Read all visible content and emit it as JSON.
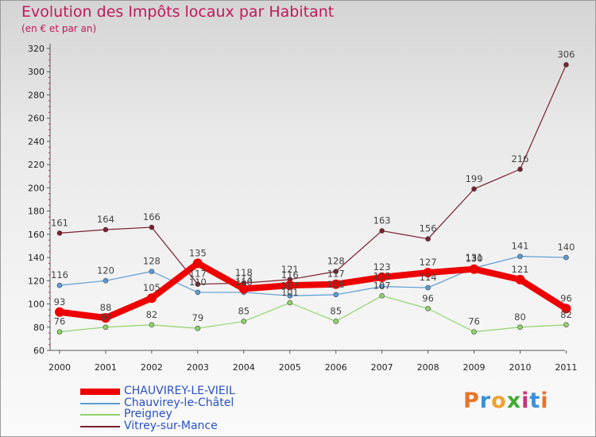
{
  "title": "Evolution des Impôts locaux par Habitant",
  "subtitle": "(en € et par an)",
  "chart_data": {
    "type": "line",
    "title": "Evolution des Impôts locaux par Habitant",
    "subtitle": "(en € et par an)",
    "xlabel": "",
    "ylabel": "",
    "x": [
      "2000",
      "2001",
      "2002",
      "2003",
      "2004",
      "2005",
      "2006",
      "2007",
      "2008",
      "2009",
      "2010",
      "2011"
    ],
    "ylim": [
      60,
      320
    ],
    "yticks": [
      60,
      80,
      100,
      120,
      140,
      160,
      180,
      200,
      220,
      240,
      260,
      280,
      300,
      320
    ],
    "grid": false,
    "legend_position": "bottom-left",
    "series": [
      {
        "name": "Vitrey-sur-Mance",
        "color": "#7b1f2e",
        "values": [
          161,
          164,
          166,
          117,
          118,
          121,
          128,
          163,
          156,
          199,
          216,
          306
        ]
      },
      {
        "name": "Preigney",
        "color": "#8fd46a",
        "values": [
          76,
          80,
          82,
          79,
          85,
          101,
          85,
          107,
          96,
          76,
          80,
          82
        ]
      },
      {
        "name": "Chauvirey-le-Châtel",
        "color": "#5b9bd5",
        "values": [
          116,
          120,
          128,
          110,
          110,
          107,
          108,
          115,
          114,
          131,
          141,
          140
        ]
      },
      {
        "name": "CHAUVIREY-LE-VIEIL",
        "color": "#ee0000",
        "values": [
          93,
          88,
          105,
          135,
          113,
          116,
          117,
          123,
          127,
          130,
          121,
          96
        ]
      }
    ],
    "legend": [
      {
        "name": "CHAUVIREY-LE-VIEIL",
        "color": "#ee0000"
      },
      {
        "name": "Chauvirey-le-Châtel",
        "color": "#5b9bd5"
      },
      {
        "name": "Preigney",
        "color": "#8fd46a"
      },
      {
        "name": "Vitrey-sur-Mance",
        "color": "#7b1f2e"
      }
    ]
  },
  "logo": {
    "text": "Proxiti",
    "colors": [
      "#e8742a",
      "#3a8fd8",
      "#f0a030",
      "#44aa33",
      "#cc3377",
      "#3a8fd8",
      "#e8742a"
    ]
  }
}
